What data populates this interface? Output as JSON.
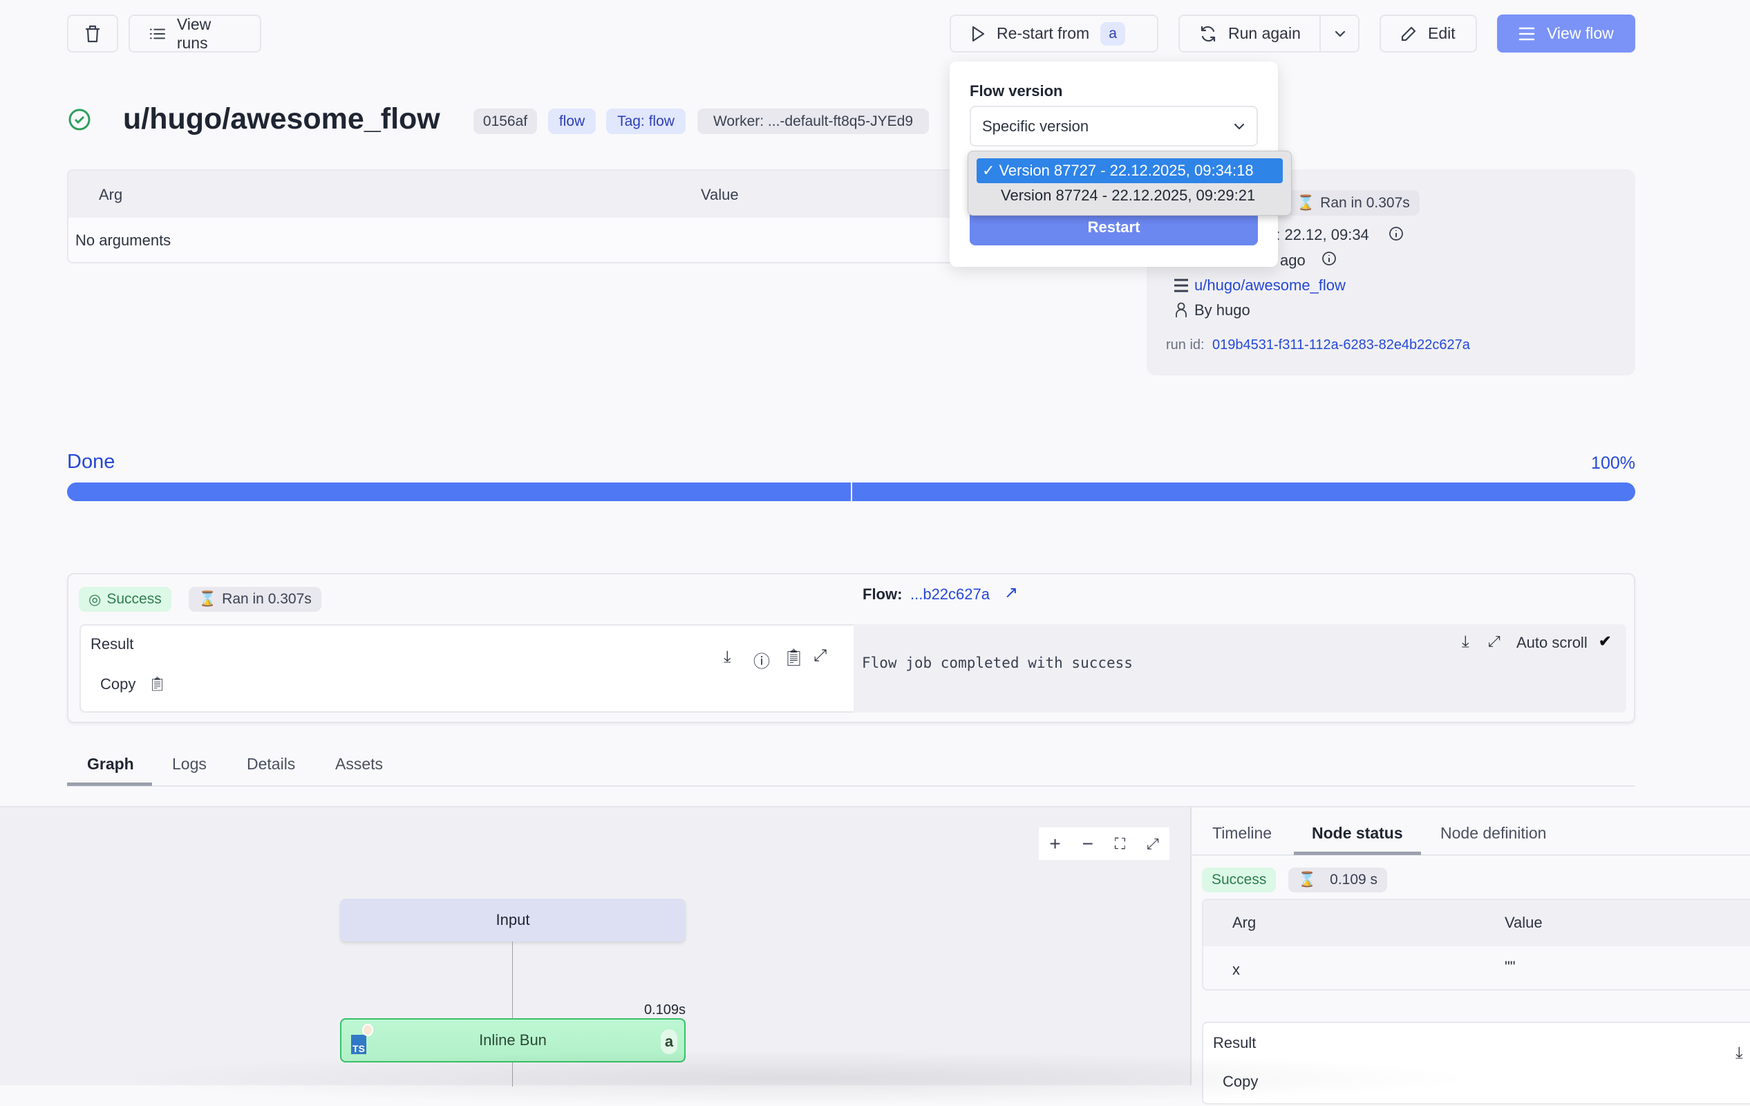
{
  "toolbar": {
    "view_runs": "View runs",
    "restart_from": "Re-start from",
    "restart_step": "a",
    "run_again": "Run again",
    "edit": "Edit",
    "view_flow": "View flow"
  },
  "header": {
    "title": "u/hugo/awesome_flow",
    "badges": [
      "0156af",
      "flow",
      "Tag: flow",
      "Worker: ...-default-ft8q5-JYEd9"
    ]
  },
  "args_table": {
    "col_arg": "Arg",
    "col_value": "Value",
    "empty": "No arguments"
  },
  "info": {
    "ran_in": "Ran in 0.307s",
    "started_fragment": "b: 22.12, 09:34",
    "ago_fragment": "ago",
    "flow_path": "u/hugo/awesome_flow",
    "by": "By hugo",
    "run_id_label": "run id:",
    "run_id": "019b4531-f311-112a-6283-82e4b22c627a"
  },
  "popup": {
    "title": "Flow version",
    "select_value": "Specific version",
    "options": [
      "Version 87727 - 22.12.2025, 09:34:18",
      "Version 87724 - 22.12.2025, 09:29:21"
    ],
    "selected_index": 0,
    "restart": "Restart"
  },
  "progress": {
    "label": "Done",
    "percent_text": "100%",
    "percent": 100,
    "color": "#4f78f5"
  },
  "result_card": {
    "status": "Success",
    "ran_in": "Ran in 0.307s",
    "flow_label": "Flow:",
    "flow_link": "...b22c627a",
    "result_label": "Result",
    "copy": "Copy",
    "log_text": "Flow job completed with success",
    "auto_scroll": "Auto scroll"
  },
  "tabs": [
    "Graph",
    "Logs",
    "Details",
    "Assets"
  ],
  "active_tab": "Graph",
  "graph": {
    "input_node": "Input",
    "step_node": "Inline Bun",
    "step_id": "a",
    "step_duration": "0.109s",
    "lang_badge": "TS"
  },
  "side_panel": {
    "tabs": [
      "Timeline",
      "Node status",
      "Node definition"
    ],
    "active_tab": "Node status",
    "status": "Success",
    "duration": "0.109 s",
    "col_arg": "Arg",
    "col_value": "Value",
    "rows": [
      {
        "arg": "x",
        "value": "\"\""
      }
    ],
    "result_label": "Result",
    "copy": "Copy"
  }
}
